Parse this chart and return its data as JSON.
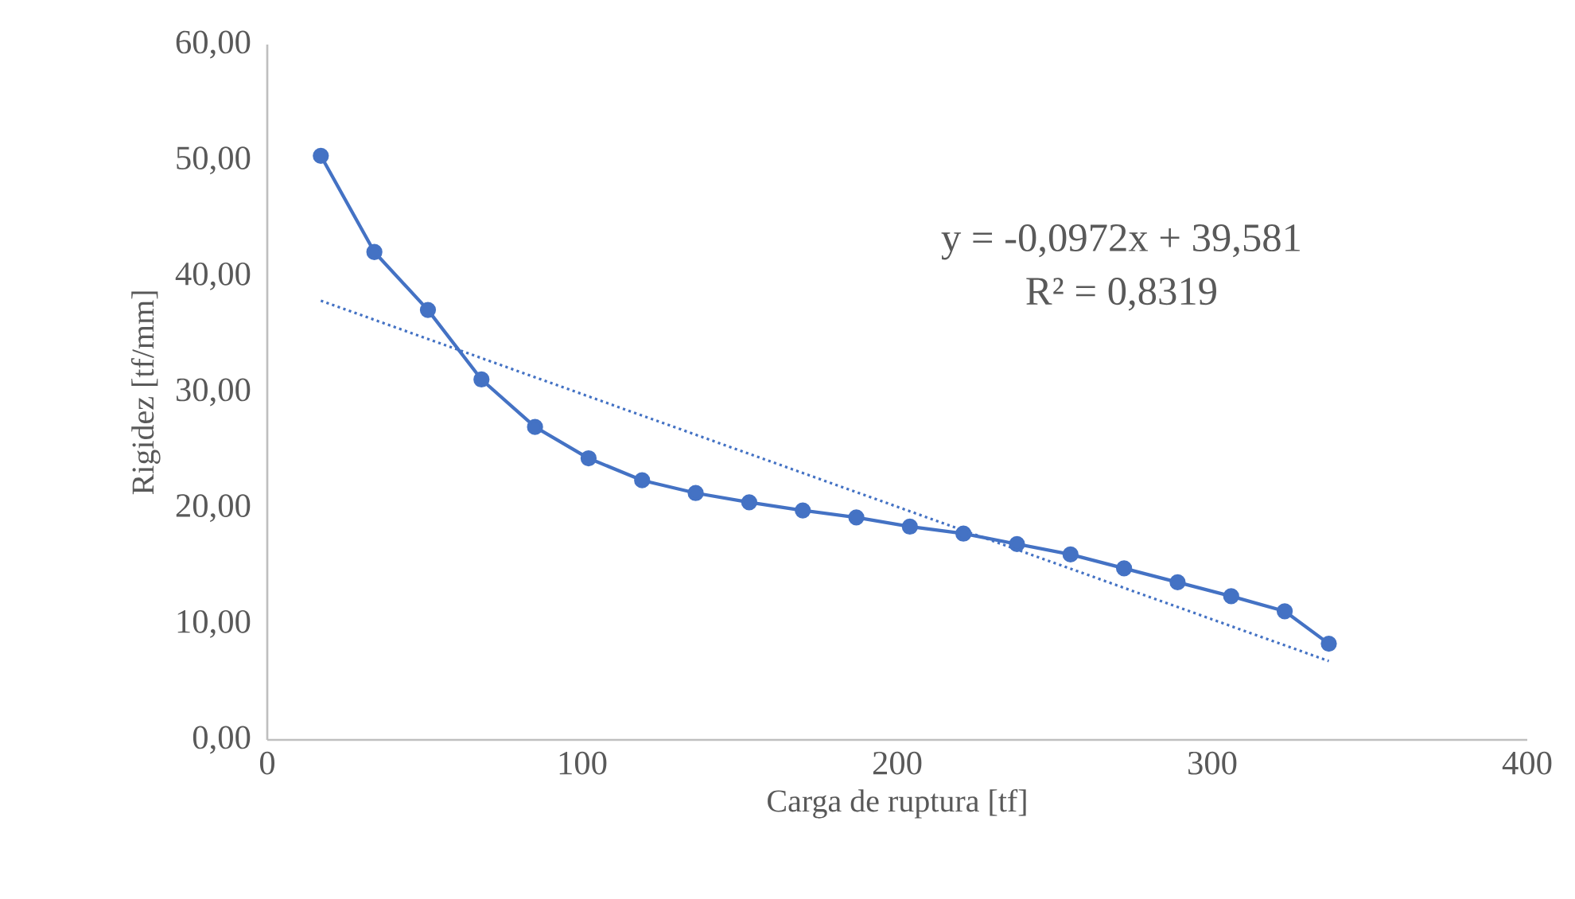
{
  "chart_data": {
    "type": "line",
    "xlabel": "Carga de ruptura [tf]",
    "ylabel": "Rigidez [tf/mm]",
    "xlim": [
      0,
      400
    ],
    "xticks": [
      0,
      100,
      200,
      300,
      400
    ],
    "ylim": [
      0,
      60
    ],
    "yticks": [
      {
        "value": 0,
        "label": "0,00"
      },
      {
        "value": 10,
        "label": "10,00"
      },
      {
        "value": 20,
        "label": "20,00"
      },
      {
        "value": 30,
        "label": "30,00"
      },
      {
        "value": 40,
        "label": "40,00"
      },
      {
        "value": 50,
        "label": "50,00"
      },
      {
        "value": 60,
        "label": "60,00"
      }
    ],
    "grid": false,
    "legend": false,
    "annotations": [
      "y = -0,0972x + 39,581",
      "R² = 0,8319"
    ],
    "series": [
      {
        "color": "#4472c4",
        "marker": "circle",
        "line_style": "solid",
        "x": [
          17,
          34,
          51,
          68,
          85,
          102,
          119,
          136,
          153,
          170,
          187,
          204,
          221,
          238,
          255,
          272,
          289,
          306,
          323,
          337
        ],
        "values": [
          50.4,
          42.1,
          37.1,
          31.1,
          27.0,
          24.3,
          22.4,
          21.3,
          20.5,
          19.8,
          19.2,
          18.4,
          17.8,
          16.9,
          16.0,
          14.8,
          13.6,
          12.4,
          11.1,
          8.3
        ]
      },
      {
        "color": "#4472c4",
        "marker": "none",
        "line_style": "dotted",
        "x": [
          17,
          337
        ],
        "values": [
          37.9,
          6.8
        ]
      }
    ]
  }
}
